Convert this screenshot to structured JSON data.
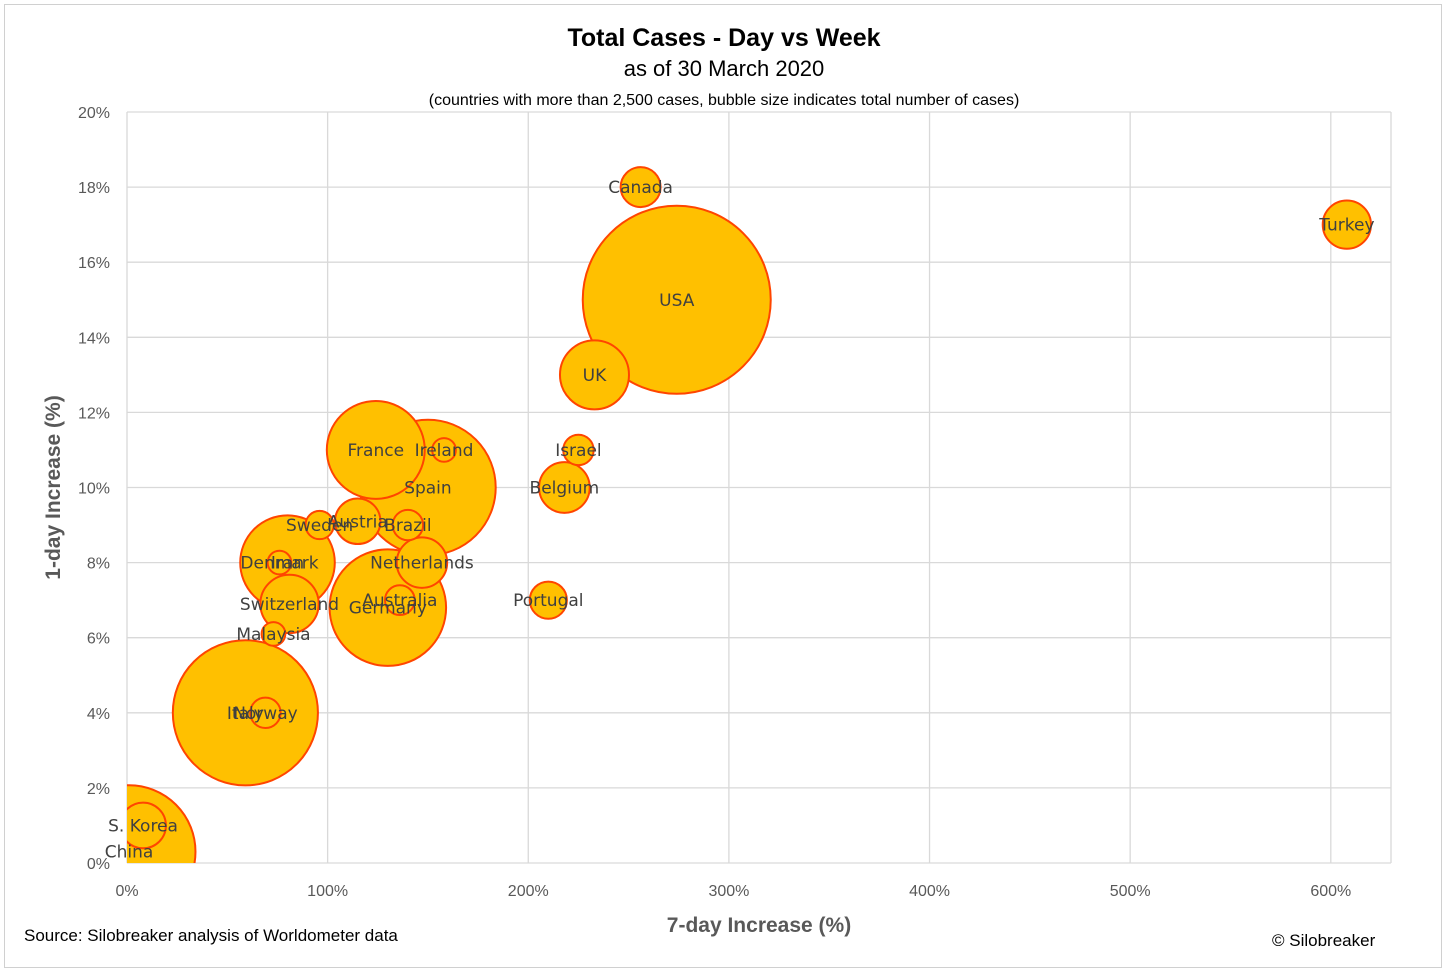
{
  "chart_data": {
    "type": "bubble",
    "title": "Total Cases - Day vs Week",
    "subtitle": "as of 30 March 2020",
    "note": "(countries with more than 2,500 cases, bubble size indicates total number of cases)",
    "xlabel": "7-day Increase (%)",
    "ylabel": "1-day Increase (%)",
    "xlim": [
      0,
      630
    ],
    "ylim": [
      0,
      20
    ],
    "x_ticks": [
      0,
      100,
      200,
      300,
      400,
      500,
      600
    ],
    "y_ticks": [
      0,
      2,
      4,
      6,
      8,
      10,
      12,
      14,
      16,
      18,
      20
    ],
    "x_tick_labels": [
      "0%",
      "100%",
      "200%",
      "300%",
      "400%",
      "500%",
      "600%"
    ],
    "y_tick_labels": [
      "0%",
      "2%",
      "4%",
      "6%",
      "8%",
      "10%",
      "12%",
      "14%",
      "16%",
      "18%",
      "20%"
    ],
    "grid": true,
    "bubble_color": "#FFC000",
    "bubble_border": "#FF4500",
    "points": [
      {
        "label": "China",
        "x": 1,
        "y": 0.3,
        "size": 82000
      },
      {
        "label": "S. Korea",
        "x": 8,
        "y": 1.0,
        "size": 9700
      },
      {
        "label": "Italy",
        "x": 59,
        "y": 4.0,
        "size": 97700
      },
      {
        "label": "Norway",
        "x": 69,
        "y": 4.0,
        "size": 4300
      },
      {
        "label": "Malaysia",
        "x": 73,
        "y": 6.1,
        "size": 2600
      },
      {
        "label": "Switzerland",
        "x": 81,
        "y": 6.9,
        "size": 15800
      },
      {
        "label": "Denmark",
        "x": 76,
        "y": 8.0,
        "size": 2600
      },
      {
        "label": "Iran",
        "x": 80,
        "y": 8.0,
        "size": 41500
      },
      {
        "label": "Sweden",
        "x": 96,
        "y": 9.0,
        "size": 3700
      },
      {
        "label": "Austria",
        "x": 115,
        "y": 9.1,
        "size": 9600
      },
      {
        "label": "France",
        "x": 124,
        "y": 11.0,
        "size": 44500
      },
      {
        "label": "Ireland",
        "x": 158,
        "y": 11.0,
        "size": 2600
      },
      {
        "label": "Spain",
        "x": 150,
        "y": 10.0,
        "size": 85200
      },
      {
        "label": "Brazil",
        "x": 140,
        "y": 9.0,
        "size": 4300
      },
      {
        "label": "Netherlands",
        "x": 147,
        "y": 8.0,
        "size": 11800
      },
      {
        "label": "Australia",
        "x": 136,
        "y": 7.0,
        "size": 4100
      },
      {
        "label": "Germany",
        "x": 130,
        "y": 6.8,
        "size": 63000
      },
      {
        "label": "Portugal",
        "x": 210,
        "y": 7.0,
        "size": 6400
      },
      {
        "label": "Belgium",
        "x": 218,
        "y": 10.0,
        "size": 11900
      },
      {
        "label": "Israel",
        "x": 225,
        "y": 11.0,
        "size": 4300
      },
      {
        "label": "UK",
        "x": 233,
        "y": 13.0,
        "size": 22100
      },
      {
        "label": "USA",
        "x": 274,
        "y": 15.0,
        "size": 164000
      },
      {
        "label": "Canada",
        "x": 256,
        "y": 18.0,
        "size": 7400
      },
      {
        "label": "Turkey",
        "x": 608,
        "y": 17.0,
        "size": 10800
      }
    ],
    "source": "Source: Silobreaker analysis of Worldometer data",
    "copyright": "© Silobreaker"
  }
}
